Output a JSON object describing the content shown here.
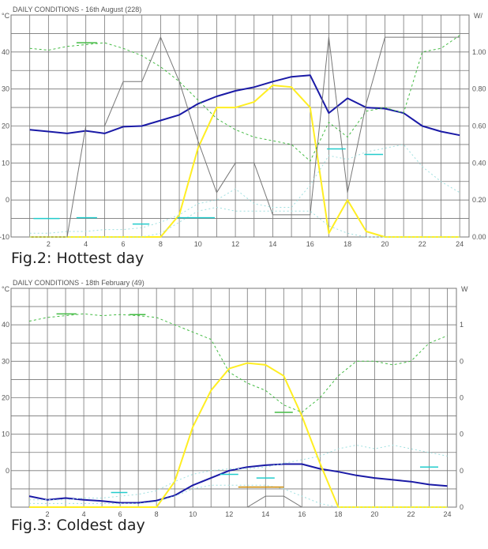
{
  "figure2": {
    "caption": "Fig.2: Hottest day",
    "chart_data": {
      "type": "line",
      "title": "DAILY CONDITIONS - 16th August (228)",
      "left_unit": "°C",
      "right_unit": "W/",
      "xlim": [
        0,
        24.5
      ],
      "ylim": [
        -10,
        50
      ],
      "y2lim": [
        0,
        1.2
      ],
      "x_ticks": [
        "2",
        "4",
        "6",
        "8",
        "10",
        "12",
        "14",
        "16",
        "18",
        "20",
        "22",
        "24"
      ],
      "y_ticks": [
        "-10",
        "0",
        "10",
        "20",
        "30",
        "40"
      ],
      "y2_ticks": [
        "0.00",
        "0.20",
        "0.40",
        "0.60",
        "0.80",
        "1.00"
      ],
      "grid": true,
      "colors": {
        "blue": "#1a1aa6",
        "yellow": "#ffee22",
        "green": "#44bb44",
        "gray": "#777777",
        "cyan": "#22cccc",
        "lightcyan": "#9fe0e0"
      },
      "series": [
        {
          "color": "blue",
          "axis": "left",
          "width": 2,
          "x": [
            1,
            2,
            3,
            4,
            5,
            6,
            7,
            8,
            9,
            10,
            11,
            12,
            13,
            14,
            15,
            16,
            17,
            18,
            19,
            20,
            21,
            22,
            23,
            24
          ],
          "y": [
            19,
            18.5,
            18,
            18.7,
            18,
            19.8,
            20,
            21.5,
            23,
            26,
            28,
            29.5,
            30.5,
            32,
            33.3,
            33.7,
            23.5,
            27.5,
            25,
            24.7,
            23.5,
            20,
            18.5,
            17.5
          ]
        },
        {
          "color": "yellow",
          "axis": "left",
          "width": 2,
          "x": [
            1,
            2,
            3,
            4,
            5,
            6,
            7,
            8,
            9,
            10,
            11,
            12,
            13,
            14,
            15,
            16,
            17,
            18,
            19,
            20,
            21,
            22,
            23,
            24
          ],
          "y": [
            -10,
            -10,
            -10,
            -10,
            -10,
            -10,
            -10,
            -10,
            -4,
            14,
            25,
            25,
            26.5,
            31,
            30.5,
            25,
            -9,
            0,
            -8.5,
            -10,
            -10,
            -10,
            -10,
            -10
          ]
        },
        {
          "color": "green",
          "axis": "left",
          "width": 1,
          "dash": "3,3",
          "x": [
            1,
            2,
            3,
            4,
            5,
            6,
            7,
            8,
            9,
            10,
            11,
            12,
            13,
            14,
            15,
            16,
            17,
            18,
            19,
            20,
            21,
            22,
            23,
            24
          ],
          "y": [
            41,
            40.5,
            41.5,
            42,
            42.5,
            41,
            39,
            36,
            32,
            27,
            22,
            19,
            17,
            16,
            15,
            10.5,
            21,
            17,
            24,
            25,
            23.5,
            40,
            41,
            44.5
          ]
        },
        {
          "color": "gray",
          "axis": "right",
          "width": 1,
          "x": [
            1,
            2,
            3,
            4,
            5,
            6,
            7,
            8,
            9,
            10,
            11,
            12,
            13,
            14,
            15,
            16,
            17,
            18,
            19,
            20,
            21,
            22,
            23,
            24
          ],
          "y": [
            0,
            0,
            0,
            0.6,
            0.6,
            0.84,
            0.84,
            1.08,
            0.84,
            0.52,
            0.24,
            0.4,
            0.4,
            0.12,
            0.12,
            0.12,
            1.08,
            0.24,
            0.72,
            1.08,
            1.08,
            1.08,
            1.08,
            1.08
          ]
        },
        {
          "color": "lightcyan",
          "axis": "left",
          "width": 1,
          "dash": "2,3",
          "x": [
            1,
            2,
            3,
            4,
            5,
            6,
            7,
            8,
            9,
            10,
            11,
            12,
            13,
            14,
            15,
            16,
            17,
            18,
            19,
            20,
            21,
            22,
            23,
            24
          ],
          "y": [
            -9,
            -9,
            -8.5,
            -8.5,
            -8,
            -8,
            -7.5,
            -6,
            -4,
            -1,
            0,
            3,
            -1,
            -2,
            -2,
            4,
            12,
            11,
            13,
            14,
            15,
            9,
            5,
            2
          ]
        },
        {
          "color": "lightcyan",
          "axis": "left",
          "width": 1,
          "dash": "2,3",
          "x": [
            1,
            2,
            3,
            4,
            5,
            6,
            7,
            8,
            9,
            10,
            11,
            12,
            13,
            14,
            15,
            16,
            17,
            18,
            19,
            20,
            21,
            22,
            23,
            24
          ],
          "y": [
            -10,
            -10,
            -10,
            -10,
            -10,
            -10,
            -10,
            -9,
            -6,
            -3,
            -2,
            -3,
            -3,
            -3,
            -3,
            -3,
            -7,
            -9,
            -10,
            -10,
            -10,
            -10,
            -10,
            -10
          ]
        }
      ],
      "markers": [
        {
          "color": "cyan",
          "axis": "left",
          "x1": 1.2,
          "x2": 2.6,
          "y": -5
        },
        {
          "color": "cyan",
          "axis": "left",
          "x1": 3.5,
          "x2": 4.6,
          "y": -4.8
        },
        {
          "color": "cyan",
          "axis": "left",
          "x1": 6.5,
          "x2": 7.4,
          "y": -6.5
        },
        {
          "color": "cyan",
          "axis": "left",
          "x1": 8.9,
          "x2": 10.9,
          "y": -4.8
        },
        {
          "color": "cyan",
          "axis": "left",
          "x1": 16.9,
          "x2": 17.9,
          "y": 13.8
        },
        {
          "color": "cyan",
          "axis": "left",
          "x1": 18.9,
          "x2": 19.9,
          "y": 12.3
        },
        {
          "color": "green",
          "axis": "left",
          "x1": 3.5,
          "x2": 4.6,
          "y": 42.5
        }
      ]
    }
  },
  "figure3": {
    "caption": "Fig.3: Coldest day",
    "chart_data": {
      "type": "line",
      "title": "DAILY CONDITIONS - 18th February (49)",
      "left_unit": "°C",
      "right_unit": "W",
      "xlim": [
        0,
        24.5
      ],
      "ylim": [
        -10,
        50
      ],
      "y2lim": [
        0,
        1.2
      ],
      "x_ticks": [
        "2",
        "4",
        "6",
        "8",
        "10",
        "12",
        "14",
        "16",
        "18",
        "20",
        "22",
        "24"
      ],
      "y_ticks": [
        "0",
        "10",
        "20",
        "30",
        "40"
      ],
      "y2_ticks": [
        "0",
        "0",
        "0",
        "0",
        "0",
        "1"
      ],
      "grid": true,
      "colors": {
        "blue": "#1a1aa6",
        "yellow": "#ffee22",
        "green": "#44bb44",
        "gray": "#777777",
        "cyan": "#22cccc",
        "lightcyan": "#9fe0e0",
        "orange": "#cc8800"
      },
      "series": [
        {
          "color": "blue",
          "axis": "left",
          "width": 2,
          "x": [
            1,
            2,
            3,
            4,
            5,
            6,
            7,
            8,
            9,
            10,
            11,
            12,
            13,
            14,
            15,
            16,
            17,
            18,
            19,
            20,
            21,
            22,
            23,
            24
          ],
          "y": [
            -7,
            -8,
            -7.5,
            -8,
            -8.3,
            -8.8,
            -8.8,
            -8.2,
            -6.8,
            -4,
            -2,
            0,
            1,
            1.5,
            1.8,
            1.8,
            0.5,
            -0.3,
            -1.3,
            -2,
            -2.5,
            -3,
            -3.8,
            -4.2
          ]
        },
        {
          "color": "yellow",
          "axis": "left",
          "width": 2,
          "x": [
            1,
            2,
            3,
            4,
            5,
            6,
            7,
            8,
            9,
            10,
            11,
            12,
            13,
            14,
            15,
            16,
            17,
            18,
            19,
            20,
            21,
            22,
            23,
            24
          ],
          "y": [
            -10,
            -10,
            -10,
            -10,
            -10,
            -10,
            -10,
            -10,
            -3,
            12,
            22,
            28,
            29.5,
            29,
            26,
            15,
            2,
            -10,
            -10,
            -10,
            -10,
            -10,
            -10,
            -10
          ]
        },
        {
          "color": "green",
          "axis": "left",
          "width": 1,
          "dash": "3,3",
          "x": [
            1,
            2,
            3,
            4,
            5,
            6,
            7,
            8,
            9,
            10,
            11,
            12,
            13,
            14,
            15,
            16,
            17,
            18,
            19,
            20,
            21,
            22,
            23,
            24
          ],
          "y": [
            41,
            42,
            42.5,
            43,
            42.5,
            42.8,
            42.5,
            42,
            40,
            38,
            36,
            27,
            24,
            22,
            18,
            16,
            20,
            26,
            30,
            30,
            29,
            30,
            35,
            37
          ]
        },
        {
          "color": "gray",
          "axis": "right",
          "width": 1,
          "x": [
            13,
            14,
            15,
            16
          ],
          "y": [
            0,
            0.06,
            0.06,
            0
          ]
        },
        {
          "color": "lightcyan",
          "axis": "left",
          "width": 1,
          "dash": "2,3",
          "x": [
            1,
            2,
            3,
            4,
            5,
            6,
            7,
            8,
            9,
            10,
            11,
            12,
            13,
            14,
            15,
            16,
            17,
            18,
            19,
            20,
            21,
            22,
            23,
            24
          ],
          "y": [
            -8,
            -8,
            -8,
            -7.5,
            -7.5,
            -7,
            -6.5,
            -5.5,
            -3,
            -1,
            0,
            0.5,
            0.5,
            1,
            2,
            3,
            4,
            6,
            7,
            6,
            7,
            6,
            5,
            4
          ]
        },
        {
          "color": "lightcyan",
          "axis": "left",
          "width": 1,
          "dash": "2,3",
          "x": [
            1,
            2,
            3,
            4,
            5,
            6,
            7,
            8,
            9,
            10,
            11,
            12,
            13,
            14,
            15,
            16,
            17,
            18,
            19,
            20,
            21,
            22,
            23,
            24
          ],
          "y": [
            -9,
            -9,
            -9,
            -9,
            -9,
            -9,
            -9,
            -8.5,
            -7,
            -5,
            -4,
            -4,
            -4,
            -4,
            -5,
            -7,
            -9,
            -10,
            -10,
            -10,
            -10,
            -10,
            -10,
            -10
          ]
        }
      ],
      "markers": [
        {
          "color": "green",
          "axis": "left",
          "x1": 2.5,
          "x2": 3.6,
          "y": 43
        },
        {
          "color": "green",
          "axis": "left",
          "x1": 6.5,
          "x2": 7.4,
          "y": 42.8
        },
        {
          "color": "green",
          "axis": "left",
          "x1": 14.5,
          "x2": 15.5,
          "y": 16
        },
        {
          "color": "cyan",
          "axis": "left",
          "x1": 5.5,
          "x2": 6.4,
          "y": -6
        },
        {
          "color": "cyan",
          "axis": "left",
          "x1": 11.5,
          "x2": 12.5,
          "y": -1
        },
        {
          "color": "cyan",
          "axis": "left",
          "x1": 13.5,
          "x2": 14.5,
          "y": -2
        },
        {
          "color": "cyan",
          "axis": "left",
          "x1": 22.5,
          "x2": 23.5,
          "y": 1
        },
        {
          "color": "orange",
          "axis": "left",
          "x1": 12.5,
          "x2": 15,
          "y": -4.5
        }
      ]
    }
  }
}
